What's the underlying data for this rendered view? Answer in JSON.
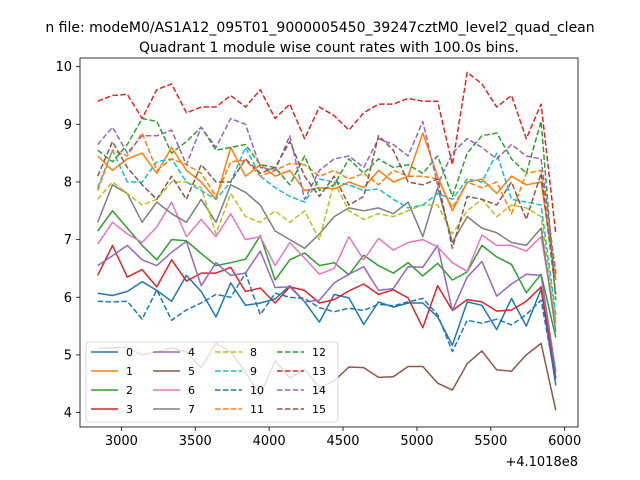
{
  "chart_data": {
    "type": "line",
    "suptitle": "n file: modeM0/AS1A12_095T01_9000005450_39247cztM0_level2_quad_clean",
    "title": "Quadrant 1 module wise count rates with 100.0s bins.",
    "xlabel": "",
    "ylabel": "",
    "x_offset_label": "+4.1018e8",
    "x_offset": 410180000,
    "xlim": [
      2720,
      6090
    ],
    "ylim": [
      3.75,
      10.15
    ],
    "x_ticks": [
      3000,
      3500,
      4000,
      4500,
      5000,
      5500,
      6000
    ],
    "x_tick_labels": [
      "3000",
      "3500",
      "4000",
      "4500",
      "5000",
      "5500",
      "6000"
    ],
    "y_ticks": [
      4,
      5,
      6,
      7,
      8,
      9,
      10
    ],
    "y_tick_labels": [
      "4",
      "5",
      "6",
      "7",
      "8",
      "9",
      "10"
    ],
    "x": [
      2840,
      2940,
      3040,
      3140,
      3240,
      3340,
      3440,
      3540,
      3640,
      3740,
      3840,
      3940,
      4040,
      4140,
      4240,
      4340,
      4440,
      4540,
      4640,
      4740,
      4840,
      4940,
      5040,
      5140,
      5240,
      5340,
      5440,
      5540,
      5640,
      5740,
      5840,
      5940
    ],
    "legend_position": "lower-left",
    "series": [
      {
        "name": "0",
        "color": "#1f77b4",
        "dash": "solid",
        "values": [
          6.07,
          6.03,
          6.1,
          6.27,
          6.12,
          5.93,
          6.38,
          6.1,
          5.66,
          6.25,
          5.86,
          5.9,
          5.97,
          6.2,
          5.92,
          5.57,
          6.05,
          5.99,
          5.53,
          5.92,
          5.83,
          5.9,
          5.9,
          5.66,
          5.17,
          5.92,
          5.86,
          5.44,
          5.98,
          5.5,
          6.14,
          4.47
        ]
      },
      {
        "name": "1",
        "color": "#ff7f0e",
        "dash": "solid",
        "values": [
          8.45,
          8.2,
          8.4,
          8.5,
          8.15,
          8.6,
          8.2,
          8.0,
          7.7,
          8.6,
          8.1,
          8.3,
          8.1,
          8.2,
          7.85,
          7.9,
          7.88,
          8.0,
          7.9,
          8.2,
          8.0,
          8.1,
          8.85,
          8.1,
          7.5,
          8.0,
          8.05,
          7.8,
          8.1,
          7.95,
          8.0,
          6.3
        ]
      },
      {
        "name": "2",
        "color": "#2ca02c",
        "dash": "solid",
        "values": [
          7.15,
          7.5,
          7.2,
          6.9,
          6.65,
          7.0,
          6.98,
          6.76,
          6.55,
          6.6,
          6.66,
          7.07,
          6.3,
          6.65,
          6.77,
          6.55,
          6.6,
          6.39,
          6.73,
          6.55,
          6.42,
          6.6,
          6.37,
          6.59,
          6.3,
          6.44,
          6.9,
          6.7,
          6.57,
          6.08,
          6.4,
          5.3
        ]
      },
      {
        "name": "3",
        "color": "#d62728",
        "dash": "solid",
        "values": [
          6.38,
          6.9,
          6.35,
          6.48,
          6.18,
          6.65,
          6.28,
          6.42,
          6.42,
          6.52,
          6.1,
          6.16,
          5.9,
          6.18,
          6.12,
          5.9,
          5.96,
          6.11,
          6.23,
          6.05,
          6.13,
          5.99,
          5.47,
          6.2,
          5.77,
          5.96,
          5.92,
          5.76,
          5.78,
          5.93,
          6.18,
          4.6
        ]
      },
      {
        "name": "4",
        "color": "#9467bd",
        "dash": "solid",
        "values": [
          6.55,
          6.72,
          6.9,
          6.65,
          6.55,
          6.78,
          6.97,
          6.2,
          6.6,
          6.38,
          6.42,
          6.8,
          6.17,
          6.18,
          5.92,
          5.95,
          6.25,
          6.4,
          6.53,
          6.12,
          6.15,
          6.53,
          6.52,
          6.9,
          5.77,
          6.35,
          6.62,
          6.02,
          6.23,
          6.4,
          6.38,
          4.7
        ]
      },
      {
        "name": "5",
        "color": "#8c564b",
        "dash": "solid",
        "values": [
          5.12,
          5.12,
          5.13,
          5.0,
          5.05,
          5.12,
          5.05,
          4.78,
          5.2,
          5.05,
          4.7,
          4.3,
          4.9,
          4.6,
          4.75,
          4.43,
          4.55,
          4.79,
          4.78,
          4.61,
          4.62,
          4.8,
          4.8,
          4.51,
          4.39,
          4.85,
          5.07,
          4.74,
          4.72,
          5.0,
          5.2,
          4.04
        ]
      },
      {
        "name": "6",
        "color": "#e377c2",
        "dash": "solid",
        "values": [
          6.92,
          7.3,
          7.1,
          6.95,
          7.22,
          7.65,
          7.05,
          7.35,
          7.05,
          7.45,
          7.0,
          7.05,
          6.55,
          6.95,
          6.68,
          6.4,
          6.5,
          7.05,
          6.65,
          7.02,
          6.82,
          6.95,
          7.0,
          6.87,
          6.6,
          6.45,
          7.08,
          6.9,
          6.9,
          6.8,
          7.05,
          5.55
        ]
      },
      {
        "name": "7",
        "color": "#7f7f7f",
        "dash": "solid",
        "values": [
          7.3,
          7.95,
          7.8,
          7.3,
          7.65,
          7.45,
          7.3,
          7.7,
          7.3,
          7.95,
          7.82,
          7.6,
          7.15,
          7.0,
          6.85,
          7.1,
          7.4,
          7.55,
          7.5,
          7.55,
          7.45,
          7.65,
          7.05,
          7.9,
          6.95,
          7.4,
          7.2,
          7.12,
          6.95,
          6.9,
          7.2,
          5.4
        ]
      },
      {
        "name": "8",
        "color": "#bcbd22",
        "dash": "dashed",
        "values": [
          7.7,
          8.0,
          7.8,
          7.6,
          7.7,
          8.0,
          8.0,
          7.9,
          7.1,
          7.8,
          7.4,
          7.3,
          7.5,
          7.3,
          7.5,
          7.0,
          8.0,
          7.5,
          7.35,
          7.45,
          7.4,
          7.5,
          7.6,
          7.6,
          7.1,
          7.5,
          7.7,
          7.4,
          7.6,
          7.55,
          7.4,
          5.6
        ]
      },
      {
        "name": "9",
        "color": "#17becf",
        "dash": "dashed",
        "values": [
          7.9,
          8.55,
          8.0,
          8.0,
          8.35,
          8.4,
          8.0,
          7.85,
          7.7,
          8.0,
          8.6,
          8.1,
          7.9,
          7.75,
          7.65,
          8.05,
          8.0,
          7.95,
          7.85,
          7.88,
          7.7,
          7.55,
          7.6,
          7.8,
          7.7,
          8.05,
          8.0,
          8.5,
          7.7,
          7.65,
          7.6,
          5.7
        ]
      },
      {
        "name": "10",
        "color": "#1f77b4",
        "dash": "dashed",
        "values": [
          5.93,
          5.92,
          5.93,
          5.62,
          6.13,
          5.6,
          5.78,
          5.9,
          6.05,
          6.0,
          6.42,
          5.7,
          6.07,
          6.0,
          5.98,
          5.82,
          5.75,
          5.81,
          5.77,
          5.88,
          5.85,
          5.92,
          5.98,
          5.7,
          5.06,
          5.6,
          5.55,
          5.62,
          5.52,
          5.7,
          5.95,
          4.55
        ]
      },
      {
        "name": "11",
        "color": "#ff7f0e",
        "dash": "dashed",
        "values": [
          7.85,
          8.55,
          8.45,
          8.85,
          8.2,
          8.4,
          8.3,
          8.15,
          7.75,
          8.35,
          8.38,
          8.1,
          8.2,
          8.32,
          8.3,
          8.1,
          8.2,
          8.05,
          8.15,
          7.95,
          8.2,
          8.1,
          8.1,
          8.05,
          7.55,
          8.0,
          7.9,
          8.0,
          7.45,
          8.15,
          8.2,
          6.45
        ]
      },
      {
        "name": "12",
        "color": "#2ca02c",
        "dash": "dashed",
        "values": [
          8.55,
          8.35,
          8.65,
          9.1,
          9.05,
          8.5,
          8.7,
          8.95,
          8.55,
          8.6,
          8.65,
          8.3,
          8.25,
          7.95,
          8.45,
          7.85,
          7.95,
          8.4,
          8.15,
          8.4,
          8.25,
          8.3,
          8.15,
          8.45,
          7.75,
          8.5,
          8.8,
          8.85,
          8.4,
          8.15,
          9.05,
          5.95
        ]
      },
      {
        "name": "13",
        "color": "#d62728",
        "dash": "dashed",
        "values": [
          9.4,
          9.5,
          9.52,
          9.1,
          9.6,
          9.7,
          9.2,
          9.3,
          9.3,
          9.5,
          9.3,
          9.6,
          9.1,
          9.35,
          8.75,
          9.3,
          9.15,
          8.9,
          9.2,
          9.35,
          9.35,
          9.45,
          9.4,
          9.4,
          8.3,
          9.9,
          9.7,
          9.3,
          9.5,
          8.75,
          9.35,
          7.1
        ]
      },
      {
        "name": "14",
        "color": "#9467bd",
        "dash": "dashed",
        "values": [
          8.65,
          8.95,
          8.5,
          8.8,
          8.8,
          8.9,
          8.3,
          8.95,
          8.6,
          9.1,
          9.0,
          8.25,
          8.2,
          8.8,
          7.7,
          8.2,
          8.4,
          8.45,
          8.25,
          8.75,
          8.65,
          8.45,
          9.05,
          7.95,
          8.5,
          8.75,
          8.6,
          8.4,
          8.65,
          8.45,
          8.4,
          6.4
        ]
      },
      {
        "name": "15",
        "color": "#8c564b",
        "dash": "dashed",
        "values": [
          8.1,
          8.7,
          8.25,
          7.95,
          7.7,
          8.1,
          7.7,
          8.3,
          8.0,
          8.0,
          8.4,
          8.15,
          8.25,
          8.7,
          8.1,
          7.75,
          8.1,
          7.6,
          7.75,
          8.8,
          8.55,
          8.0,
          7.95,
          8.05,
          6.85,
          7.75,
          7.7,
          7.6,
          8.0,
          7.35,
          8.15,
          6.05
        ]
      }
    ]
  }
}
